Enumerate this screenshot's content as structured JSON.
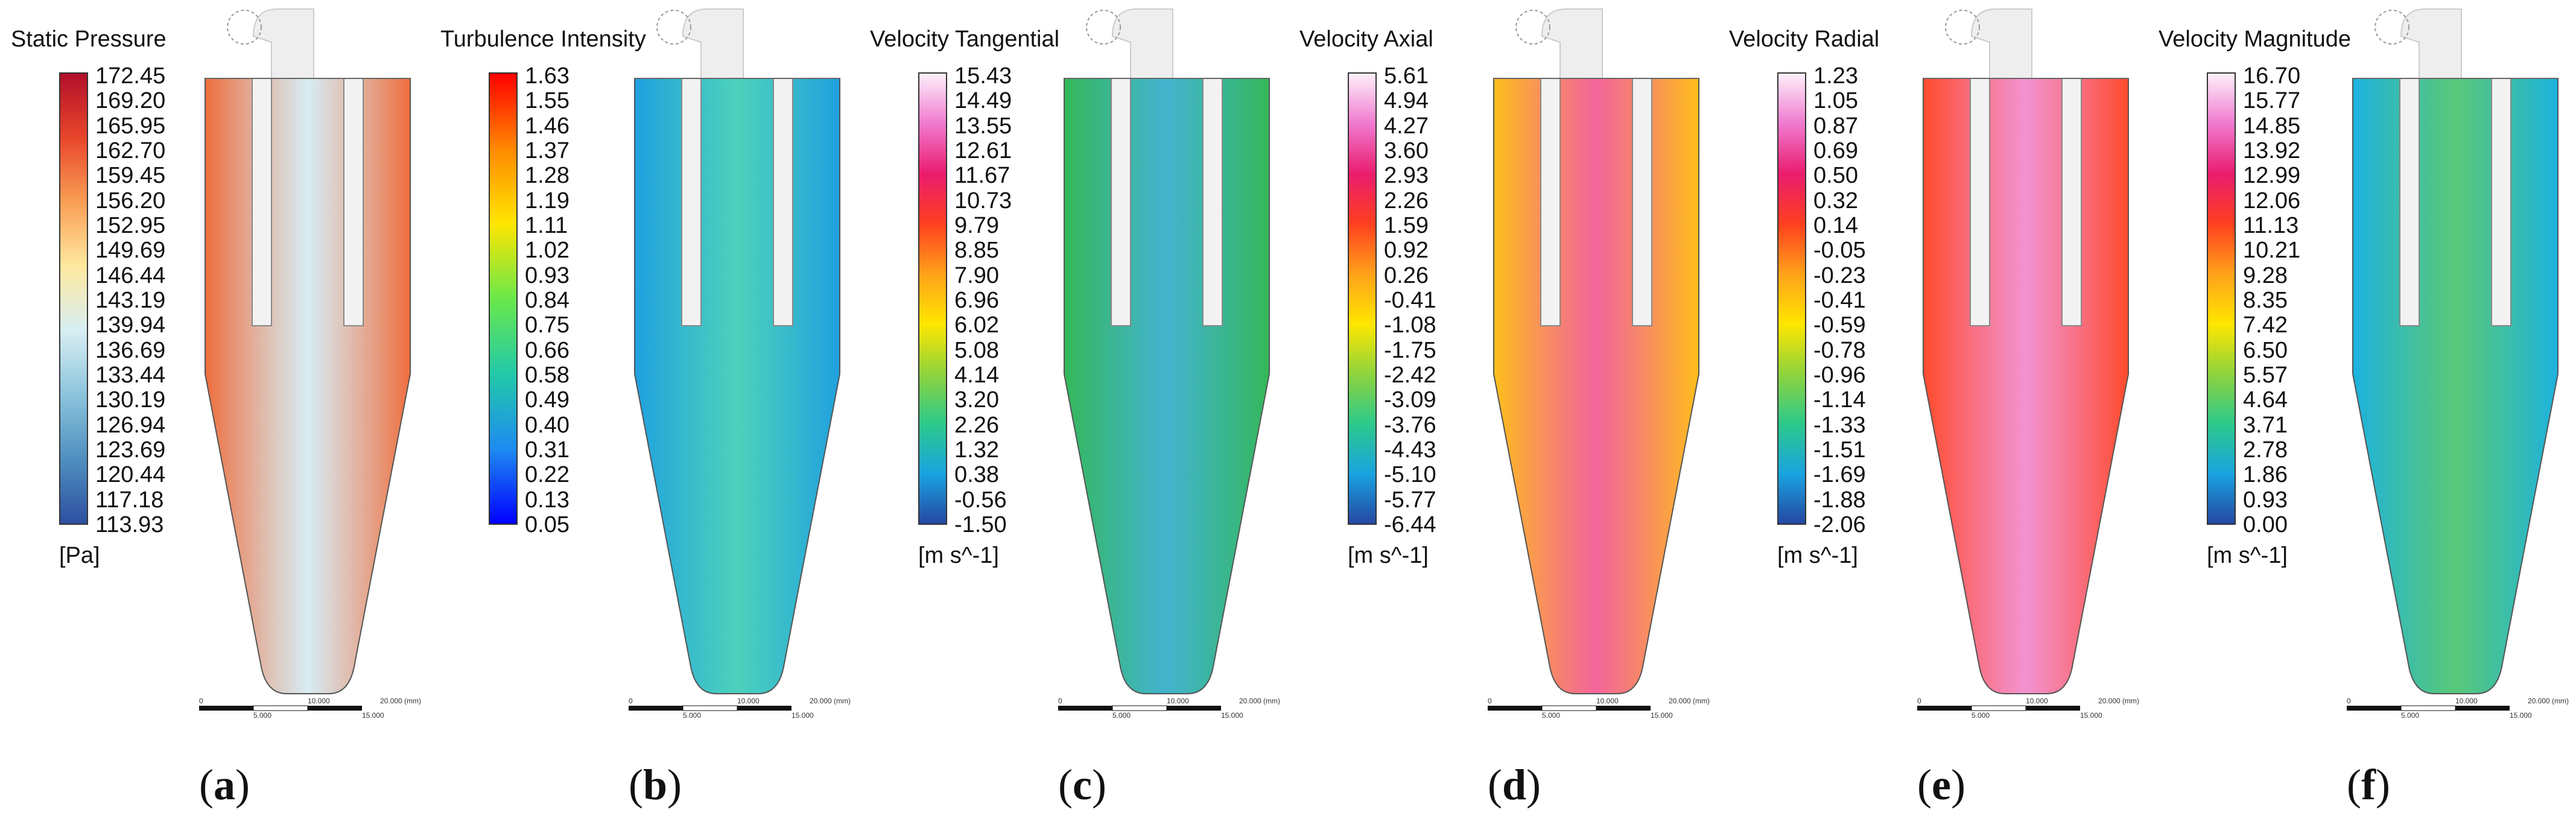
{
  "panels": [
    {
      "id": "a",
      "title": "Static Pressure",
      "unit": "[Pa]",
      "ticks": [
        "172.45",
        "169.20",
        "165.95",
        "162.70",
        "159.45",
        "156.20",
        "152.95",
        "149.69",
        "146.44",
        "143.19",
        "139.94",
        "136.69",
        "133.44",
        "130.19",
        "126.94",
        "123.69",
        "120.44",
        "117.18",
        "113.93"
      ],
      "colorbar": [
        "#b2102a",
        "#e8462b",
        "#fa9e55",
        "#ffe9a0",
        "#d7eef3",
        "#8cc4dc",
        "#4f8fc0",
        "#2d4fa0"
      ],
      "body_color": "#ef6d3c",
      "core_color": "#cfe9f1",
      "label": "a"
    },
    {
      "id": "b",
      "title": "Turbulence Intensity",
      "unit": "",
      "ticks": [
        "1.63",
        "1.55",
        "1.46",
        "1.37",
        "1.28",
        "1.19",
        "1.11",
        "1.02",
        "0.93",
        "0.84",
        "0.75",
        "0.66",
        "0.58",
        "0.49",
        "0.40",
        "0.31",
        "0.22",
        "0.13",
        "0.05"
      ],
      "colorbar": [
        "#ff0000",
        "#ff8800",
        "#ffe600",
        "#6ae84a",
        "#22c9a8",
        "#1e8cf0",
        "#0000ff"
      ],
      "body_color": "#1fa0e0",
      "core_color": "#2ec9b0",
      "label": "b"
    },
    {
      "id": "c",
      "title": "Velocity Tangential",
      "unit": "[m s^-1]",
      "ticks": [
        "15.43",
        "14.49",
        "13.55",
        "12.61",
        "11.67",
        "10.73",
        "9.79",
        "8.85",
        "7.90",
        "6.96",
        "6.02",
        "5.08",
        "4.14",
        "3.20",
        "2.26",
        "1.32",
        "0.38",
        "-0.56",
        "-1.50"
      ],
      "colorbar": [
        "#fdf0fa",
        "#f07ad0",
        "#ea1c6e",
        "#ff3f1f",
        "#ffa11a",
        "#ffe600",
        "#8fd43c",
        "#2dc98a",
        "#1aa3e0",
        "#2448a3"
      ],
      "body_color": "#34b858",
      "core_color": "#22a7c6",
      "label": "c"
    },
    {
      "id": "d",
      "title": "Velocity Axial",
      "unit": "[m s^-1]",
      "ticks": [
        "5.61",
        "4.94",
        "4.27",
        "3.60",
        "2.93",
        "2.26",
        "1.59",
        "0.92",
        "0.26",
        "-0.41",
        "-1.08",
        "-1.75",
        "-2.42",
        "-3.09",
        "-3.76",
        "-4.43",
        "-5.10",
        "-5.77",
        "-6.44"
      ],
      "colorbar": [
        "#fdf0fa",
        "#f07ad0",
        "#ea1c6e",
        "#ff3f1f",
        "#ffa11a",
        "#ffe600",
        "#8fd43c",
        "#2dc98a",
        "#1aa3e0",
        "#2448a3"
      ],
      "body_color": "#ffbf1a",
      "core_color": "#f04a8a",
      "label": "d"
    },
    {
      "id": "e",
      "title": "Velocity Radial",
      "unit": "[m s^-1]",
      "ticks": [
        "1.23",
        "1.05",
        "0.87",
        "0.69",
        "0.50",
        "0.32",
        "0.14",
        "-0.05",
        "-0.23",
        "-0.41",
        "-0.59",
        "-0.78",
        "-0.96",
        "-1.14",
        "-1.33",
        "-1.51",
        "-1.69",
        "-1.88",
        "-2.06"
      ],
      "colorbar": [
        "#fdf0fa",
        "#f07ad0",
        "#ea1c6e",
        "#ff3f1f",
        "#ffa11a",
        "#ffe600",
        "#8fd43c",
        "#2dc98a",
        "#1aa3e0",
        "#2448a3"
      ],
      "body_color": "#ff4a2a",
      "core_color": "#f080c8",
      "label": "e"
    },
    {
      "id": "f",
      "title": "Velocity Magnitude",
      "unit": "[m s^-1]",
      "ticks": [
        "16.70",
        "15.77",
        "14.85",
        "13.92",
        "12.99",
        "12.06",
        "11.13",
        "10.21",
        "9.28",
        "8.35",
        "7.42",
        "6.50",
        "5.57",
        "4.64",
        "3.71",
        "2.78",
        "1.86",
        "0.93",
        "0.00"
      ],
      "colorbar": [
        "#fdf0fa",
        "#f07ad0",
        "#ea1c6e",
        "#ff3f1f",
        "#ffa11a",
        "#ffe600",
        "#8fd43c",
        "#2dc98a",
        "#1aa3e0",
        "#2448a3"
      ],
      "body_color": "#1cb2e0",
      "core_color": "#3cbf62",
      "label": "f"
    }
  ],
  "scale_bar": {
    "labels": [
      "0",
      "10.000",
      "20.000 (mm)",
      "5.000",
      "15.000"
    ]
  }
}
